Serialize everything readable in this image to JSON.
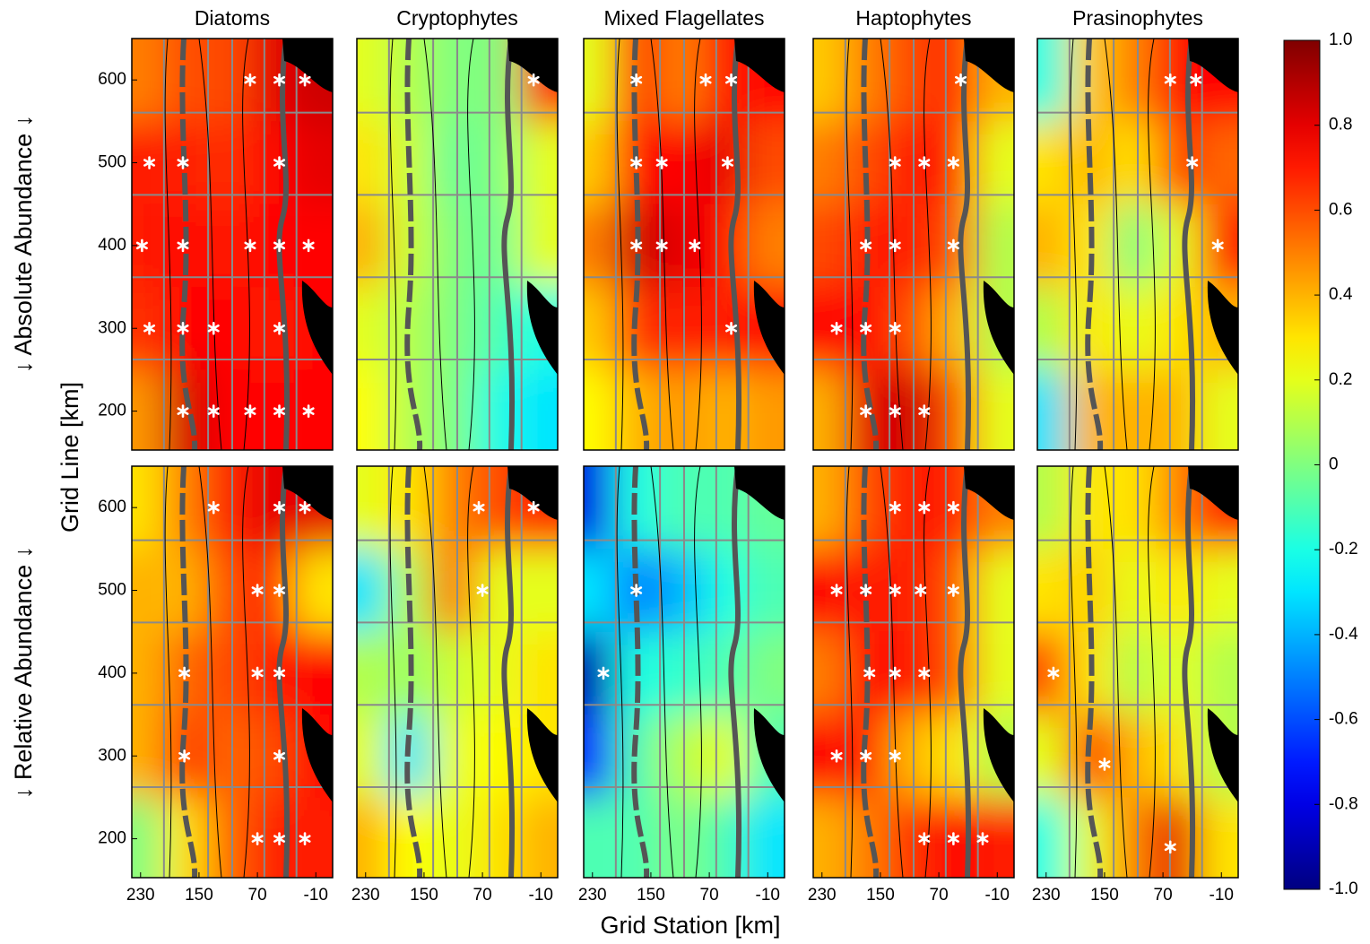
{
  "chart_data": {
    "type": "heatmap",
    "colormap": "jet",
    "columns": [
      "Diatoms",
      "Cryptophytes",
      "Mixed Flagellates",
      "Haptophytes",
      "Prasinophytes"
    ],
    "rows": [
      "↓ Absolute Abundance ↓",
      "↓ Relative Abundance ↓"
    ],
    "xlabel": "Grid Station [km]",
    "ylabel": "Grid Line [km]",
    "xlim": [
      242,
      -33
    ],
    "xticks": [
      230,
      150,
      70,
      -10
    ],
    "ylim": [
      153,
      650
    ],
    "yticks": [
      200,
      300,
      400,
      500,
      600
    ],
    "x": [
      230,
      170,
      110,
      50,
      -10
    ],
    "y": [
      600,
      500,
      400,
      300,
      200
    ],
    "colorbar": {
      "lim": [
        -1,
        1
      ],
      "ticks": [
        {
          "value": 1,
          "label": "1.0"
        },
        0.8,
        0.6,
        0.4,
        0.2,
        0,
        -0.2,
        -0.4,
        -0.6,
        -0.8,
        {
          "value": -1,
          "label": "-1.0"
        }
      ]
    },
    "panels": [
      [
        {
          "values": [
            [
              0.5,
              0.6,
              0.6,
              0.8,
              0.85
            ],
            [
              0.7,
              0.7,
              0.65,
              0.75,
              0.8
            ],
            [
              0.7,
              0.75,
              0.7,
              0.75,
              0.75
            ],
            [
              0.65,
              0.75,
              0.75,
              0.7,
              0.75
            ],
            [
              0.45,
              0.85,
              0.75,
              0.75,
              0.75
            ]
          ],
          "stars": [
            [
              80,
              600
            ],
            [
              40,
              600
            ],
            [
              5,
              600
            ],
            [
              218,
              500
            ],
            [
              172,
              500
            ],
            [
              40,
              500
            ],
            [
              228,
              400
            ],
            [
              172,
              400
            ],
            [
              80,
              400
            ],
            [
              40,
              400
            ],
            [
              0,
              400
            ],
            [
              218,
              300
            ],
            [
              172,
              300
            ],
            [
              130,
              300
            ],
            [
              40,
              300
            ],
            [
              172,
              200
            ],
            [
              130,
              200
            ],
            [
              80,
              200
            ],
            [
              40,
              200
            ],
            [
              0,
              200
            ]
          ]
        },
        {
          "values": [
            [
              0.2,
              0.1,
              0.0,
              0.0,
              0.7
            ],
            [
              0.3,
              0.15,
              -0.05,
              0.0,
              0.2
            ],
            [
              0.4,
              0.15,
              0.0,
              -0.05,
              0.2
            ],
            [
              0.2,
              0.1,
              0.0,
              -0.1,
              -0.2
            ],
            [
              0.25,
              0.1,
              0.0,
              -0.2,
              -0.3
            ]
          ],
          "stars": [
            [
              0,
              600
            ]
          ]
        },
        {
          "values": [
            [
              0.2,
              0.7,
              0.5,
              0.7,
              0.75
            ],
            [
              0.35,
              0.75,
              0.75,
              0.8,
              0.6
            ],
            [
              0.5,
              0.85,
              0.8,
              0.75,
              0.5
            ],
            [
              0.35,
              0.65,
              0.7,
              0.7,
              0.75
            ],
            [
              0.25,
              0.4,
              0.45,
              0.4,
              0.45
            ]
          ],
          "stars": [
            [
              170,
              600
            ],
            [
              75,
              600
            ],
            [
              40,
              600
            ],
            [
              170,
              500
            ],
            [
              135,
              500
            ],
            [
              45,
              500
            ],
            [
              170,
              400
            ],
            [
              135,
              400
            ],
            [
              90,
              400
            ],
            [
              40,
              300
            ]
          ]
        },
        {
          "values": [
            [
              0.35,
              0.5,
              0.6,
              0.7,
              0.4
            ],
            [
              0.5,
              0.6,
              0.7,
              0.7,
              0.2
            ],
            [
              0.6,
              0.7,
              0.7,
              0.6,
              0.1
            ],
            [
              0.75,
              0.75,
              0.6,
              0.4,
              0.1
            ],
            [
              0.4,
              0.8,
              0.85,
              0.6,
              0.2
            ]
          ],
          "stars": [
            [
              40,
              600
            ],
            [
              130,
              500
            ],
            [
              90,
              500
            ],
            [
              50,
              500
            ],
            [
              170,
              400
            ],
            [
              130,
              400
            ],
            [
              50,
              400
            ],
            [
              210,
              300
            ],
            [
              170,
              300
            ],
            [
              130,
              300
            ],
            [
              170,
              200
            ],
            [
              130,
              200
            ],
            [
              90,
              200
            ]
          ]
        },
        {
          "values": [
            [
              -0.2,
              0.35,
              0.5,
              0.75,
              0.75
            ],
            [
              0.3,
              0.4,
              0.3,
              0.65,
              0.55
            ],
            [
              0.4,
              0.3,
              0.0,
              0.2,
              0.7
            ],
            [
              0.1,
              0.3,
              0.2,
              0.3,
              0.4
            ],
            [
              -0.3,
              0.4,
              0.4,
              0.4,
              0.2
            ]
          ],
          "stars": [
            [
              60,
              600
            ],
            [
              25,
              600
            ],
            [
              30,
              500
            ],
            [
              -5,
              400
            ]
          ]
        }
      ],
      [
        {
          "values": [
            [
              0.3,
              0.5,
              0.7,
              0.8,
              0.8
            ],
            [
              0.4,
              0.4,
              0.6,
              0.7,
              0.3
            ],
            [
              0.4,
              0.55,
              0.6,
              0.7,
              0.75
            ],
            [
              0.4,
              0.65,
              0.55,
              0.6,
              0.75
            ],
            [
              0.0,
              0.3,
              0.55,
              0.7,
              0.7
            ]
          ],
          "stars": [
            [
              130,
              600
            ],
            [
              40,
              600
            ],
            [
              5,
              600
            ],
            [
              70,
              500
            ],
            [
              40,
              500
            ],
            [
              170,
              400
            ],
            [
              70,
              400
            ],
            [
              40,
              400
            ],
            [
              170,
              300
            ],
            [
              40,
              300
            ],
            [
              70,
              200
            ],
            [
              40,
              200
            ],
            [
              5,
              200
            ]
          ]
        },
        {
          "values": [
            [
              0.2,
              0.3,
              0.5,
              0.6,
              0.7
            ],
            [
              -0.3,
              0.1,
              0.55,
              0.2,
              0.2
            ],
            [
              0.1,
              0.05,
              0.15,
              0.2,
              0.3
            ],
            [
              0.2,
              -0.3,
              0.2,
              0.25,
              0.3
            ],
            [
              0.4,
              0.25,
              0.2,
              0.3,
              0.4
            ]
          ],
          "stars": [
            [
              75,
              600
            ],
            [
              0,
              600
            ],
            [
              70,
              500
            ]
          ]
        },
        {
          "values": [
            [
              -0.8,
              -0.2,
              -0.1,
              -0.1,
              -0.05
            ],
            [
              -0.3,
              -0.5,
              -0.4,
              -0.2,
              -0.1
            ],
            [
              -0.9,
              -0.2,
              -0.15,
              -0.1,
              0.0
            ],
            [
              -0.7,
              -0.1,
              0.1,
              0.2,
              -0.1
            ],
            [
              -0.1,
              -0.1,
              0.0,
              -0.1,
              -0.3
            ]
          ],
          "stars": [
            [
              170,
              500
            ],
            [
              215,
              400
            ]
          ]
        },
        {
          "values": [
            [
              0.4,
              0.6,
              0.7,
              0.7,
              0.5
            ],
            [
              0.75,
              0.7,
              0.7,
              0.6,
              0.2
            ],
            [
              0.5,
              0.75,
              0.7,
              0.6,
              0.2
            ],
            [
              0.75,
              0.7,
              0.4,
              0.3,
              0.1
            ],
            [
              0.4,
              0.5,
              0.65,
              0.75,
              0.7
            ]
          ],
          "stars": [
            [
              130,
              600
            ],
            [
              90,
              600
            ],
            [
              50,
              600
            ],
            [
              210,
              500
            ],
            [
              170,
              500
            ],
            [
              130,
              500
            ],
            [
              95,
              500
            ],
            [
              50,
              500
            ],
            [
              165,
              400
            ],
            [
              130,
              400
            ],
            [
              90,
              400
            ],
            [
              210,
              300
            ],
            [
              170,
              300
            ],
            [
              130,
              300
            ],
            [
              90,
              200
            ],
            [
              50,
              200
            ],
            [
              10,
              200
            ]
          ]
        },
        {
          "values": [
            [
              0.1,
              0.3,
              0.3,
              0.5,
              0.7
            ],
            [
              0.3,
              0.35,
              0.2,
              0.3,
              0.2
            ],
            [
              0.6,
              0.3,
              0.1,
              0.2,
              0.1
            ],
            [
              0.2,
              0.7,
              0.4,
              0.3,
              0.1
            ],
            [
              -0.2,
              0.2,
              0.5,
              0.8,
              0.3
            ]
          ],
          "stars": [
            [
              220,
              400
            ],
            [
              150,
              290
            ],
            [
              60,
              190
            ]
          ]
        }
      ]
    ]
  }
}
